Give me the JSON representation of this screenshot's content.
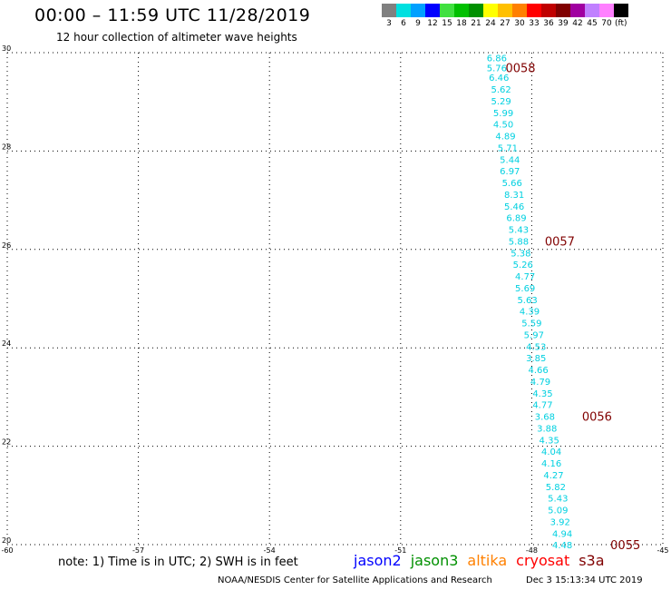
{
  "header": {
    "title": "00:00 – 11:59 UTC 11/28/2019",
    "subtitle": "12 hour collection of altimeter wave heights"
  },
  "legend": {
    "unit": "(ft)",
    "bins": [
      {
        "label": "3",
        "color": "#808080"
      },
      {
        "label": "6",
        "color": "#00e0e0"
      },
      {
        "label": "9",
        "color": "#00a0ff"
      },
      {
        "label": "12",
        "color": "#0000ff"
      },
      {
        "label": "15",
        "color": "#40e040"
      },
      {
        "label": "18",
        "color": "#00c000"
      },
      {
        "label": "21",
        "color": "#009000"
      },
      {
        "label": "24",
        "color": "#ffff00"
      },
      {
        "label": "27",
        "color": "#ffc000"
      },
      {
        "label": "30",
        "color": "#ff8000"
      },
      {
        "label": "33",
        "color": "#ff0000"
      },
      {
        "label": "36",
        "color": "#c00000"
      },
      {
        "label": "39",
        "color": "#800000"
      },
      {
        "label": "42",
        "color": "#a000a0"
      },
      {
        "label": "45",
        "color": "#c080ff"
      },
      {
        "label": "70",
        "color": "#ff80ff"
      },
      {
        "label": "",
        "color": "#000000"
      }
    ]
  },
  "chart_data": {
    "type": "scatter",
    "xlim": [
      -60,
      -45
    ],
    "ylim": [
      20,
      30
    ],
    "x_ticks": [
      "-60",
      "-57",
      "-54",
      "-51",
      "-48",
      "-45"
    ],
    "y_ticks": [
      "20",
      "22",
      "24",
      "26",
      "28",
      "30"
    ],
    "grid": true,
    "points": [
      {
        "x": -48.8,
        "y": 29.9,
        "label": "6.86"
      },
      {
        "x": -48.8,
        "y": 29.7,
        "label": "5.76"
      },
      {
        "x": -48.75,
        "y": 29.5,
        "label": "6.46"
      },
      {
        "x": -48.7,
        "y": 29.26,
        "label": "5.62"
      },
      {
        "x": -48.7,
        "y": 29.02,
        "label": "5.29"
      },
      {
        "x": -48.65,
        "y": 28.78,
        "label": "5.99"
      },
      {
        "x": -48.65,
        "y": 28.55,
        "label": "4.50"
      },
      {
        "x": -48.6,
        "y": 28.31,
        "label": "4.89"
      },
      {
        "x": -48.55,
        "y": 28.07,
        "label": "5.71"
      },
      {
        "x": -48.5,
        "y": 27.83,
        "label": "5.44"
      },
      {
        "x": -48.5,
        "y": 27.6,
        "label": "6.97"
      },
      {
        "x": -48.45,
        "y": 27.36,
        "label": "5.66"
      },
      {
        "x": -48.4,
        "y": 27.12,
        "label": "8.31"
      },
      {
        "x": -48.4,
        "y": 26.88,
        "label": "5.46"
      },
      {
        "x": -48.35,
        "y": 26.65,
        "label": "6.89"
      },
      {
        "x": -48.3,
        "y": 26.41,
        "label": "5.43"
      },
      {
        "x": -48.3,
        "y": 26.17,
        "label": "5.88"
      },
      {
        "x": -48.25,
        "y": 25.93,
        "label": "5.38"
      },
      {
        "x": -48.2,
        "y": 25.7,
        "label": "5.26"
      },
      {
        "x": -48.15,
        "y": 25.46,
        "label": "4.77"
      },
      {
        "x": -48.15,
        "y": 25.22,
        "label": "5.69"
      },
      {
        "x": -48.1,
        "y": 24.98,
        "label": "5.63"
      },
      {
        "x": -48.05,
        "y": 24.75,
        "label": "4.39"
      },
      {
        "x": -48.0,
        "y": 24.51,
        "label": "5.59"
      },
      {
        "x": -47.95,
        "y": 24.27,
        "label": "5.97"
      },
      {
        "x": -47.9,
        "y": 24.03,
        "label": "4.53"
      },
      {
        "x": -47.9,
        "y": 23.8,
        "label": "3.85"
      },
      {
        "x": -47.85,
        "y": 23.56,
        "label": "4.66"
      },
      {
        "x": -47.8,
        "y": 23.32,
        "label": "4.79"
      },
      {
        "x": -47.75,
        "y": 23.08,
        "label": "4.35"
      },
      {
        "x": -47.75,
        "y": 22.85,
        "label": "4.77"
      },
      {
        "x": -47.7,
        "y": 22.61,
        "label": "3.68"
      },
      {
        "x": -47.65,
        "y": 22.37,
        "label": "3.88"
      },
      {
        "x": -47.6,
        "y": 22.13,
        "label": "4.35"
      },
      {
        "x": -47.55,
        "y": 21.9,
        "label": "4.04"
      },
      {
        "x": -47.55,
        "y": 21.66,
        "label": "4.16"
      },
      {
        "x": -47.5,
        "y": 21.42,
        "label": "4.27"
      },
      {
        "x": -47.45,
        "y": 21.18,
        "label": "5.82"
      },
      {
        "x": -47.4,
        "y": 20.95,
        "label": "5.43"
      },
      {
        "x": -47.4,
        "y": 20.71,
        "label": "5.09"
      },
      {
        "x": -47.35,
        "y": 20.47,
        "label": "3.92"
      },
      {
        "x": -47.3,
        "y": 20.23,
        "label": "4.94"
      },
      {
        "x": -47.3,
        "y": 20.0,
        "label": "4.48"
      }
    ],
    "time_labels": [
      {
        "x": -48.6,
        "y": 29.7,
        "label": "0058"
      },
      {
        "x": -47.7,
        "y": 26.17,
        "label": "0057"
      },
      {
        "x": -46.85,
        "y": 22.61,
        "label": "0056"
      },
      {
        "x": -46.2,
        "y": 20.0,
        "label": "0055"
      }
    ]
  },
  "footer": {
    "note": "note: 1) Time is in UTC; 2) SWH is in feet",
    "satellites": [
      {
        "label": "jason2",
        "color": "#0000ff"
      },
      {
        "label": "jason3",
        "color": "#009000"
      },
      {
        "label": "altika",
        "color": "#ff8000"
      },
      {
        "label": "cryosat",
        "color": "#ff0000"
      },
      {
        "label": "s3a",
        "color": "#800000"
      }
    ],
    "credit": "NOAA/NESDIS Center for Satellite Applications and Research",
    "timestamp": "Dec  3 15:13:34 UTC 2019"
  },
  "colors": {
    "point_label": "#00d0e0",
    "time_label": "#800000",
    "grid": "#000000"
  }
}
